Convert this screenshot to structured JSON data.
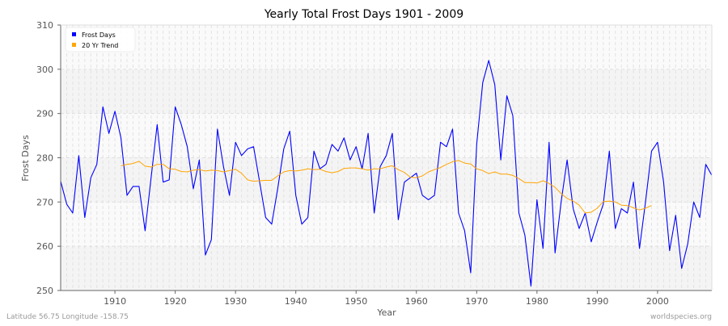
{
  "chart_data": {
    "type": "line",
    "title": "Yearly Total Frost Days 1901 - 2009",
    "xlabel": "Year",
    "ylabel": "Frost Days",
    "xlim": [
      1901,
      2009
    ],
    "ylim": [
      250,
      310
    ],
    "x_ticks": [
      1910,
      1920,
      1930,
      1940,
      1950,
      1960,
      1970,
      1980,
      1990,
      2000
    ],
    "y_ticks": [
      250,
      260,
      270,
      280,
      290,
      300,
      310
    ],
    "grid": true,
    "legend_position": "top-left",
    "series": [
      {
        "name": "Frost Days",
        "color": "#0000ff",
        "x_start": 1901,
        "values": [
          274.7,
          269.5,
          267.5,
          280.5,
          266.5,
          275.5,
          278.5,
          291.5,
          285.5,
          290.5,
          284.5,
          271.5,
          273.5,
          273.5,
          263.5,
          275.5,
          287.5,
          274.5,
          275,
          291.5,
          287.5,
          282.5,
          273,
          279.5,
          258,
          261.5,
          286.5,
          278,
          271.5,
          283.5,
          280.5,
          282,
          282.5,
          274.5,
          266.5,
          265,
          273,
          282,
          286,
          271.5,
          265,
          266.5,
          281.5,
          277.5,
          278.5,
          283,
          281.5,
          284.5,
          279.5,
          282.5,
          277.5,
          285.5,
          267.5,
          278,
          280.5,
          285.5,
          266,
          274.5,
          275.5,
          276.5,
          271.5,
          270.5,
          271.5,
          283.5,
          282.5,
          286.5,
          267.5,
          263.5,
          254,
          283,
          297,
          302,
          296.5,
          279.5,
          294,
          289.5,
          267.5,
          262.5,
          251,
          270.5,
          259.5,
          283.5,
          258.5,
          270,
          279.5,
          268.5,
          264,
          267.5,
          261,
          265.5,
          269.5,
          281.5,
          264,
          268.5,
          267.5,
          274.5,
          259.5,
          270,
          281.5,
          283.5,
          274.5,
          259,
          267,
          255,
          260.5,
          270,
          266.5,
          278.5,
          276
        ]
      },
      {
        "name": "20 Yr Trend",
        "color": "#ffa500",
        "x_start": 1911,
        "values": [
          278.2,
          278.5,
          278.7,
          279.2,
          278.1,
          277.9,
          278.5,
          278.5,
          277.5,
          277.4,
          276.9,
          276.8,
          277.2,
          277.3,
          277.0,
          277.2,
          277.1,
          276.8,
          277.1,
          277.4,
          276.5,
          275.0,
          274.7,
          274.8,
          274.9,
          274.9,
          275.9,
          276.8,
          277.1,
          277.0,
          277.2,
          277.5,
          277.3,
          277.4,
          276.9,
          276.6,
          276.9,
          277.6,
          277.7,
          277.7,
          277.5,
          277.2,
          277.5,
          277.5,
          277.9,
          278.2,
          277.3,
          276.7,
          275.6,
          275.5,
          275.9,
          276.8,
          277.3,
          277.8,
          278.5,
          279.1,
          279.4,
          278.8,
          278.6,
          277.5,
          277.1,
          276.4,
          276.8,
          276.3,
          276.3,
          276.0,
          275.3,
          274.4,
          274.4,
          274.3,
          274.8,
          274.2,
          273.3,
          271.9,
          270.8,
          270.2,
          269.3,
          267.5,
          267.7,
          268.6,
          270.1,
          270.2,
          270.0,
          269.3,
          269.2,
          268.7,
          268.2,
          268.6,
          269.2
        ]
      }
    ]
  },
  "footer": {
    "location": "Latitude 56.75 Longitude -158.75",
    "source": "worldspecies.org"
  }
}
